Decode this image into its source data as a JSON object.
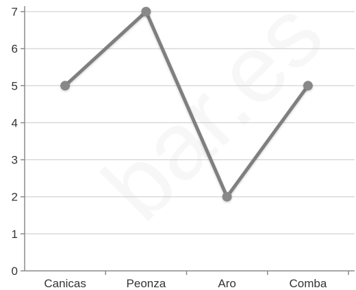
{
  "chart_data": {
    "type": "line",
    "categories": [
      "Canicas",
      "Peonza",
      "Aro",
      "Comba"
    ],
    "values": [
      5,
      7,
      2,
      5
    ],
    "title": "",
    "xlabel": "",
    "ylabel": "",
    "ylim": [
      0,
      7
    ],
    "yticks": [
      0,
      1,
      2,
      3,
      4,
      5,
      6,
      7
    ],
    "grid": true,
    "legend": "none",
    "colors": {
      "line": "#7f7f7f",
      "marker": "#888888",
      "grid": "#c8c8c8",
      "axis": "#8a8a8a",
      "text": "#333333"
    }
  },
  "watermark": {
    "text": "bar.es"
  }
}
